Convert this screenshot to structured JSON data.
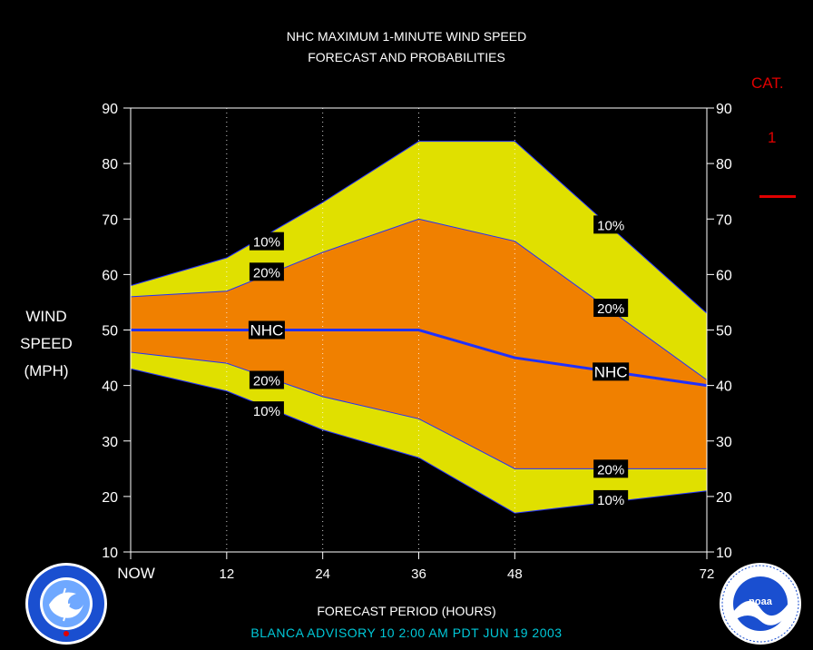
{
  "title": {
    "line1": "NHC MAXIMUM 1-MINUTE WIND SPEED",
    "line2": "FORECAST AND PROBABILITIES"
  },
  "category": {
    "label": "CAT.",
    "value": "1",
    "color": "#e00000"
  },
  "axes": {
    "ylabel": [
      "WIND",
      "SPEED",
      "(MPH)"
    ],
    "xlabel": "FORECAST PERIOD (HOURS)"
  },
  "advisory": "BLANCA   ADVISORY  10 2:00  AM  PDT  JUN 19  2003",
  "logos": {
    "left": "nws-logo",
    "right": "noaa-logo"
  },
  "colors": {
    "band10": "#e0e000",
    "band20": "#f08000",
    "nhc_line": "#2030ff",
    "edge": "#2030ff"
  },
  "chart_data": {
    "type": "area",
    "x": [
      0,
      12,
      24,
      36,
      48,
      72
    ],
    "x_domain": [
      0,
      72
    ],
    "x_tick_labels": [
      "NOW",
      "12",
      "24",
      "36",
      "48",
      "72"
    ],
    "ylim": [
      10,
      90
    ],
    "y_ticks": [
      10,
      20,
      30,
      40,
      50,
      60,
      70,
      80,
      90
    ],
    "series": [
      {
        "name": "10%",
        "role": "upper_10",
        "x": [
          0,
          12,
          24,
          36,
          48,
          72
        ],
        "values": [
          58,
          63,
          73,
          84,
          84,
          53
        ]
      },
      {
        "name": "20%",
        "role": "upper_20",
        "x": [
          0,
          12,
          24,
          36,
          48,
          72
        ],
        "values": [
          56,
          57,
          64,
          70,
          66,
          41
        ]
      },
      {
        "name": "NHC",
        "role": "nhc",
        "x": [
          0,
          12,
          24,
          36,
          48,
          72
        ],
        "values": [
          50,
          50,
          50,
          50,
          45,
          40
        ]
      },
      {
        "name": "20%",
        "role": "lower_20",
        "x": [
          0,
          12,
          24,
          36,
          48,
          72
        ],
        "values": [
          46,
          44,
          38,
          34,
          25,
          25
        ]
      },
      {
        "name": "10%",
        "role": "lower_10",
        "x": [
          0,
          12,
          24,
          36,
          48,
          72
        ],
        "values": [
          43,
          39,
          32,
          27,
          17,
          21
        ]
      }
    ],
    "annotations": [
      {
        "text": "10%",
        "x": 17,
        "y": 66
      },
      {
        "text": "20%",
        "x": 17,
        "y": 60.5
      },
      {
        "text": "NHC",
        "x": 17,
        "y": 50
      },
      {
        "text": "20%",
        "x": 17,
        "y": 41
      },
      {
        "text": "10%",
        "x": 17,
        "y": 35.5
      },
      {
        "text": "10%",
        "x": 60,
        "y": 69
      },
      {
        "text": "20%",
        "x": 60,
        "y": 54
      },
      {
        "text": "NHC",
        "x": 60,
        "y": 42.5
      },
      {
        "text": "20%",
        "x": 60,
        "y": 25
      },
      {
        "text": "10%",
        "x": 60,
        "y": 19.5
      }
    ],
    "vertical_gridlines_at": [
      12,
      24,
      36,
      48
    ],
    "grid": "dotted-vertical"
  }
}
